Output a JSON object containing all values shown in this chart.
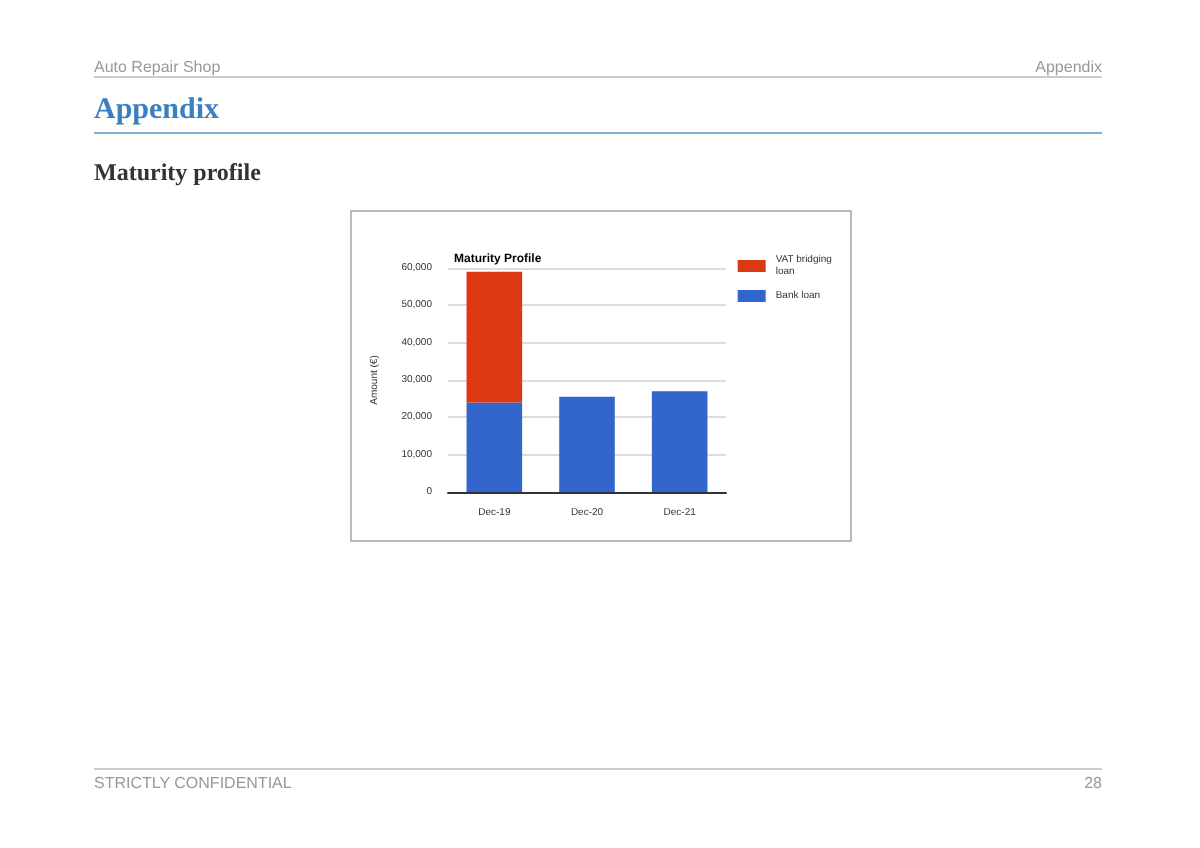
{
  "chart_data": {
    "type": "bar",
    "title": "Maturity Profile",
    "ylabel": "Amount (€)",
    "annotations": [
      "Auto Repair Shop",
      "Appendix",
      "Appendix",
      "Maturity profile",
      "STRICTLY CONFIDENTIAL",
      "28"
    ],
    "categories": [
      "Dec-19",
      "Dec-20",
      "Dec-21"
    ],
    "series": [
      {
        "name": "Bank loan",
        "color": "#3366cc",
        "values": [
          24000,
          25500,
          27000
        ]
      },
      {
        "name": "VAT bridging loan",
        "color": "#dc3912",
        "values": [
          35000,
          null,
          null
        ]
      }
    ],
    "stacked": true,
    "ylim": [
      0,
      60000
    ],
    "yticks": [
      0,
      {
        "value": 10000,
        "label": "10,000"
      },
      {
        "value": 20000,
        "label": "20,000"
      },
      {
        "value": 30000,
        "label": "30,000"
      },
      {
        "value": 40000,
        "label": "40,000"
      },
      {
        "value": 50000,
        "label": "50,000"
      },
      {
        "value": 60000,
        "label": "60,000"
      }
    ],
    "grid": "y",
    "legend": "right"
  }
}
